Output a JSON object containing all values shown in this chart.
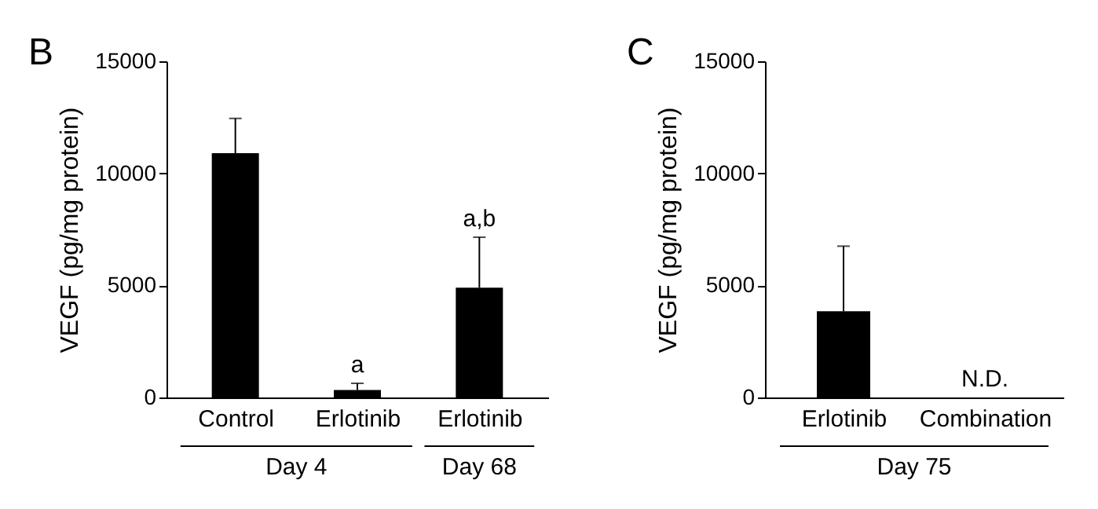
{
  "chart_data": [
    {
      "type": "bar",
      "title": "B",
      "ylabel": "VEGF (pg/mg protein)",
      "categories": [
        "Control",
        "Erlotinib",
        "Erlotinib"
      ],
      "values": [
        10900,
        330,
        4900
      ],
      "errors": [
        1550,
        300,
        2250
      ],
      "color": "#000000",
      "value_labels": [
        null,
        "a",
        "a,b"
      ],
      "ylim": [
        0,
        15000
      ],
      "yticks": [
        0,
        5000,
        10000,
        15000
      ],
      "annotations": [
        "Day 4",
        "Day 68"
      ]
    },
    {
      "type": "bar",
      "title": "C",
      "ylabel": "VEGF (pg/mg protein)",
      "categories": [
        "Erlotinib",
        "Combination"
      ],
      "values": [
        3850,
        null
      ],
      "errors": [
        2900,
        null
      ],
      "color": "#000000",
      "value_labels": [
        null,
        "N.D."
      ],
      "ylim": [
        0,
        15000
      ],
      "yticks": [
        0,
        5000,
        10000,
        15000
      ],
      "annotations": [
        "Day 75"
      ]
    }
  ]
}
